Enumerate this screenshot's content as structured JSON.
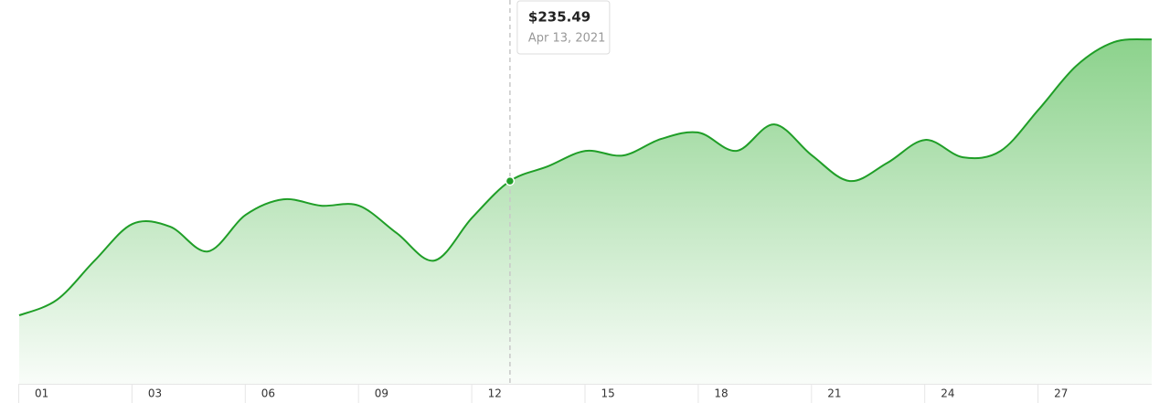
{
  "chart_data": {
    "type": "area",
    "categories": [
      "01",
      null,
      null,
      "03",
      null,
      null,
      "06",
      null,
      null,
      "09",
      null,
      null,
      "12",
      null,
      null,
      "15",
      null,
      null,
      "18",
      null,
      null,
      "21",
      null,
      null,
      "24",
      null,
      null,
      "27",
      null,
      null,
      null
    ],
    "series": [
      {
        "color": "#1f9e27",
        "values": [
          220.79,
          222.49,
          226.79,
          230.79,
          230.49,
          227.79,
          231.79,
          233.49,
          232.79,
          232.79,
          229.79,
          226.79,
          231.49,
          235.49,
          237.09,
          238.79,
          238.29,
          240.09,
          240.79,
          238.79,
          241.69,
          238.29,
          235.49,
          237.49,
          239.99,
          238.09,
          238.79,
          243.29,
          248.09,
          250.69,
          250.99
        ]
      }
    ],
    "ylim": [
      213.3,
      255.3
    ],
    "tooltip": {
      "value": 235.49,
      "label": "$235.49",
      "date": "Apr 13, 2021"
    }
  }
}
